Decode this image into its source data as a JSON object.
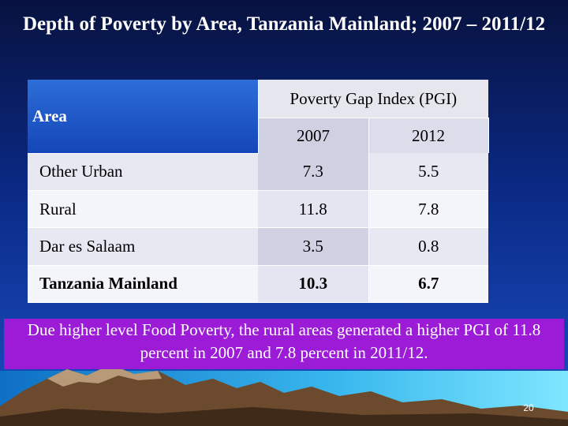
{
  "title": "Depth of Poverty by Area, Tanzania Mainland; 2007 – 2011/12",
  "table": {
    "area_header": "Area",
    "group_header": "Poverty Gap Index (PGI)",
    "years": [
      "2007",
      "2012"
    ],
    "rows": [
      {
        "area": "Other Urban",
        "v2007": "7.3",
        "v2012": "5.5"
      },
      {
        "area": "Rural",
        "v2007": "11.8",
        "v2012": "7.8"
      },
      {
        "area": "Dar es Salaam",
        "v2007": "3.5",
        "v2012": "0.8"
      },
      {
        "area": "Tanzania Mainland",
        "v2007": "10.3",
        "v2012": "6.7"
      }
    ]
  },
  "note": "Due higher level Food Poverty, the rural areas generated a higher PGI of 11.8 percent in 2007 and 7.8 percent in 2011/12.",
  "page_number": "20",
  "colors": {
    "background": "#0b2a86",
    "header_blue": "#1d57c8",
    "note_purple": "#9b1bd6"
  }
}
